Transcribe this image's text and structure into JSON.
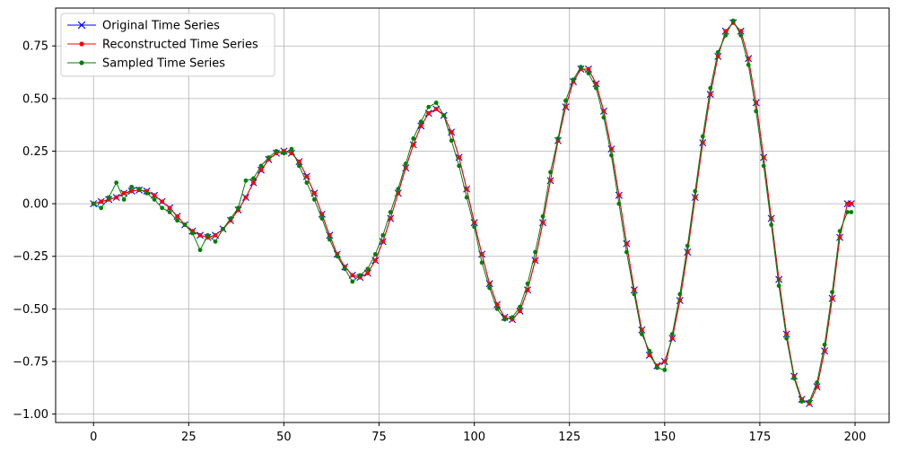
{
  "chart_data": {
    "type": "line",
    "title": "",
    "xlabel": "",
    "ylabel": "",
    "xlim": [
      -9.95,
      208.95
    ],
    "ylim": [
      -1.04,
      0.93
    ],
    "x_ticks": [
      0,
      25,
      50,
      75,
      100,
      125,
      150,
      175,
      200
    ],
    "y_ticks": [
      0.75,
      0.5,
      0.25,
      0.0,
      -0.25,
      -0.5,
      -0.75,
      -1.0
    ],
    "x_tick_labels": [
      "0",
      "25",
      "50",
      "75",
      "100",
      "125",
      "150",
      "175",
      "200"
    ],
    "y_tick_labels": [
      "0.75",
      "0.50",
      "0.25",
      "0.00",
      "−0.25",
      "−0.50",
      "−0.75",
      "−1.00"
    ],
    "grid": true,
    "legend_position": "upper-left",
    "x": [
      0,
      2,
      4,
      6,
      8,
      10,
      12,
      14,
      16,
      18,
      20,
      22,
      24,
      26,
      28,
      30,
      32,
      34,
      36,
      38,
      40,
      42,
      44,
      46,
      48,
      50,
      52,
      54,
      56,
      58,
      60,
      62,
      64,
      66,
      68,
      70,
      72,
      74,
      76,
      78,
      80,
      82,
      84,
      86,
      88,
      90,
      92,
      94,
      96,
      98,
      100,
      102,
      104,
      106,
      108,
      110,
      112,
      114,
      116,
      118,
      120,
      122,
      124,
      126,
      128,
      130,
      132,
      134,
      136,
      138,
      140,
      142,
      144,
      146,
      148,
      150,
      152,
      154,
      156,
      158,
      160,
      162,
      164,
      166,
      168,
      170,
      172,
      174,
      176,
      178,
      180,
      182,
      184,
      186,
      188,
      190,
      192,
      194,
      196,
      198,
      199
    ],
    "series": [
      {
        "name": "Original Time Series",
        "color": "#0000ff",
        "marker": "x",
        "values": [
          0.0,
          0.01,
          0.02,
          0.03,
          0.05,
          0.06,
          0.065,
          0.06,
          0.04,
          0.01,
          -0.02,
          -0.06,
          -0.1,
          -0.13,
          -0.15,
          -0.16,
          -0.15,
          -0.12,
          -0.08,
          -0.03,
          0.03,
          0.1,
          0.16,
          0.21,
          0.24,
          0.25,
          0.24,
          0.2,
          0.13,
          0.05,
          -0.05,
          -0.15,
          -0.24,
          -0.3,
          -0.34,
          -0.35,
          -0.33,
          -0.27,
          -0.18,
          -0.07,
          0.05,
          0.17,
          0.28,
          0.37,
          0.43,
          0.45,
          0.42,
          0.34,
          0.22,
          0.07,
          -0.09,
          -0.24,
          -0.38,
          -0.48,
          -0.54,
          -0.55,
          -0.51,
          -0.41,
          -0.27,
          -0.09,
          0.11,
          0.3,
          0.46,
          0.58,
          0.64,
          0.64,
          0.57,
          0.44,
          0.26,
          0.04,
          -0.19,
          -0.41,
          -0.6,
          -0.72,
          -0.77,
          -0.75,
          -0.64,
          -0.46,
          -0.23,
          0.03,
          0.29,
          0.52,
          0.7,
          0.82,
          0.86,
          0.82,
          0.69,
          0.48,
          0.22,
          -0.07,
          -0.36,
          -0.62,
          -0.82,
          -0.93,
          -0.95,
          -0.87,
          -0.7,
          -0.45,
          -0.16,
          0.0,
          0.0
        ]
      },
      {
        "name": "Reconstructed Time Series",
        "color": "#ff0000",
        "marker": "dot",
        "values": [
          0.0,
          0.01,
          0.02,
          0.03,
          0.05,
          0.06,
          0.065,
          0.06,
          0.04,
          0.01,
          -0.02,
          -0.06,
          -0.1,
          -0.13,
          -0.15,
          -0.16,
          -0.15,
          -0.12,
          -0.08,
          -0.03,
          0.03,
          0.1,
          0.16,
          0.21,
          0.24,
          0.25,
          0.24,
          0.2,
          0.13,
          0.05,
          -0.05,
          -0.15,
          -0.24,
          -0.3,
          -0.34,
          -0.35,
          -0.33,
          -0.27,
          -0.18,
          -0.07,
          0.05,
          0.17,
          0.28,
          0.37,
          0.43,
          0.45,
          0.42,
          0.34,
          0.22,
          0.07,
          -0.09,
          -0.24,
          -0.38,
          -0.48,
          -0.54,
          -0.55,
          -0.51,
          -0.41,
          -0.27,
          -0.09,
          0.11,
          0.3,
          0.46,
          0.58,
          0.64,
          0.64,
          0.57,
          0.44,
          0.26,
          0.04,
          -0.19,
          -0.41,
          -0.6,
          -0.72,
          -0.77,
          -0.75,
          -0.64,
          -0.46,
          -0.23,
          0.03,
          0.29,
          0.52,
          0.7,
          0.82,
          0.86,
          0.82,
          0.69,
          0.48,
          0.22,
          -0.07,
          -0.36,
          -0.62,
          -0.82,
          -0.93,
          -0.95,
          -0.87,
          -0.7,
          -0.45,
          -0.16,
          0.0,
          0.0
        ]
      },
      {
        "name": "Sampled Time Series",
        "color": "#008000",
        "marker": "dot",
        "values": [
          0.0,
          -0.02,
          0.03,
          0.1,
          0.02,
          0.08,
          0.07,
          0.05,
          0.02,
          -0.02,
          -0.04,
          -0.08,
          -0.1,
          -0.14,
          -0.22,
          -0.15,
          -0.18,
          -0.12,
          -0.07,
          -0.02,
          0.11,
          0.12,
          0.18,
          0.22,
          0.25,
          0.24,
          0.26,
          0.18,
          0.1,
          0.02,
          -0.07,
          -0.17,
          -0.25,
          -0.31,
          -0.37,
          -0.34,
          -0.31,
          -0.24,
          -0.15,
          -0.04,
          0.07,
          0.19,
          0.31,
          0.39,
          0.46,
          0.48,
          0.42,
          0.3,
          0.18,
          0.03,
          -0.11,
          -0.28,
          -0.4,
          -0.5,
          -0.55,
          -0.54,
          -0.49,
          -0.38,
          -0.23,
          -0.06,
          0.15,
          0.31,
          0.49,
          0.59,
          0.65,
          0.62,
          0.55,
          0.41,
          0.23,
          0.0,
          -0.23,
          -0.43,
          -0.62,
          -0.7,
          -0.78,
          -0.79,
          -0.62,
          -0.43,
          -0.2,
          0.06,
          0.32,
          0.55,
          0.72,
          0.8,
          0.87,
          0.8,
          0.66,
          0.44,
          0.18,
          -0.1,
          -0.39,
          -0.64,
          -0.83,
          -0.94,
          -0.94,
          -0.85,
          -0.67,
          -0.42,
          -0.13,
          -0.04,
          -0.04
        ]
      }
    ]
  }
}
